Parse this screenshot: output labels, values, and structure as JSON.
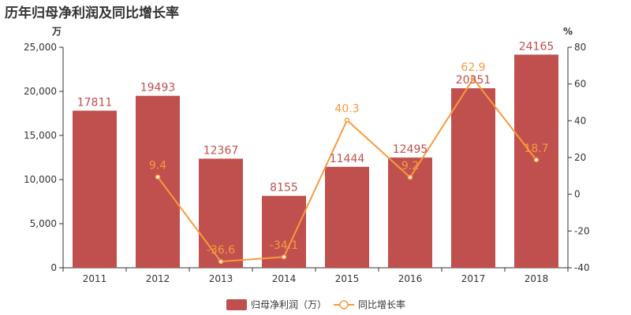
{
  "title": "历年归母净利润及同比增长率",
  "colors": {
    "bar": "#c0504d",
    "line": "#f79a3e",
    "axis": "#333333"
  },
  "chart_data": {
    "type": "bar",
    "title": "历年归母净利润及同比增长率",
    "categories": [
      "2011",
      "2012",
      "2013",
      "2014",
      "2015",
      "2016",
      "2017",
      "2018"
    ],
    "left_unit": "万",
    "right_unit": "%",
    "ylim": [
      0,
      25000
    ],
    "ylim_right": [
      -40,
      80
    ],
    "left_ticks": [
      "0",
      "5,000",
      "10,000",
      "15,000",
      "20,000",
      "25,000"
    ],
    "right_ticks": [
      "-40",
      "-20",
      "0",
      "20",
      "40",
      "60",
      "80"
    ],
    "series": [
      {
        "name": "归母净利润（万）",
        "type": "bar",
        "axis": "left",
        "values": [
          17811,
          19493,
          12367,
          8155,
          11444,
          12495,
          20351,
          24165
        ],
        "labels": [
          "17811",
          "19493",
          "12367",
          "8155",
          "11444",
          "12495",
          "20351",
          "24165"
        ]
      },
      {
        "name": "同比增长率",
        "type": "line",
        "axis": "right",
        "values": [
          null,
          9.4,
          -36.6,
          -34.1,
          40.3,
          9.2,
          62.9,
          18.7
        ],
        "labels": [
          "",
          "9.4",
          "-36.6",
          "-34.1",
          "40.3",
          "9.2",
          "62.9",
          "18.7"
        ]
      }
    ],
    "legend": "bottom-center",
    "grid": false
  }
}
